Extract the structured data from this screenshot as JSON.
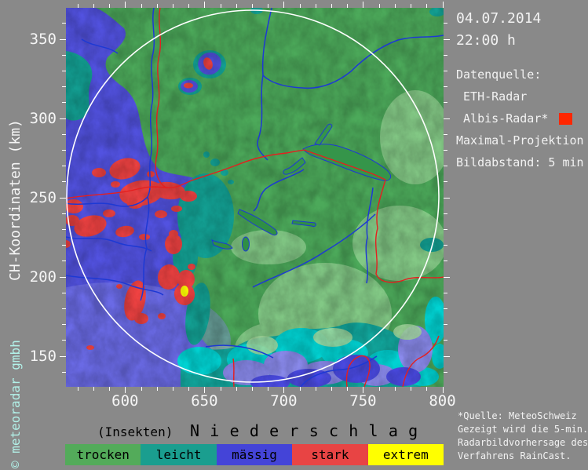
{
  "header": {
    "date": "04.07.2014",
    "time": "22:00 h"
  },
  "sidebar": {
    "datasource_label": "Datenquelle:",
    "sources": [
      " ETH-Radar",
      " Albis-Radar*"
    ],
    "marker_color": "#ff2600",
    "projection": "Maximal-Projektion",
    "interval": "Bildabstand: 5 min"
  },
  "axes": {
    "y_label": "CH-Koordinaten (km)",
    "y_ticks": [
      350,
      300,
      250,
      200,
      150
    ],
    "x_ticks": [
      600,
      650,
      700,
      750,
      800
    ]
  },
  "watermark": "© meteoradar gmbh",
  "title": {
    "prefix": "(Insekten)",
    "main": "N i e d e r s c h l a g"
  },
  "legend": {
    "items": [
      {
        "label": "trocken",
        "color": "#53ab5a"
      },
      {
        "label": "leicht",
        "color": "#1a9e8f"
      },
      {
        "label": "mässig",
        "color": "#4444d8"
      },
      {
        "label": "stark",
        "color": "#e84444"
      },
      {
        "label": "extrem",
        "color": "#ffff00"
      }
    ]
  },
  "footnote": {
    "lines": [
      "*Quelle: MeteoSchweiz",
      "Gezeigt wird die 5-min.",
      "Radarbildvorhersage des",
      "Verfahrens RainCast."
    ]
  },
  "map": {
    "range_ring_color": "#ffffff",
    "river_color": "#1d39d4",
    "border_color": "#e51f1f",
    "palette": {
      "dry_green": "#4ca95a",
      "light_teal": "#13a295",
      "moderate_blue": "#5252e0",
      "strong_red": "#ef4242",
      "extreme_yellow": "#ffff00",
      "bright_cyan": "#00d2d2",
      "lavender_blue": "#8a8aec",
      "pale_green": "#b9e8b0"
    }
  }
}
